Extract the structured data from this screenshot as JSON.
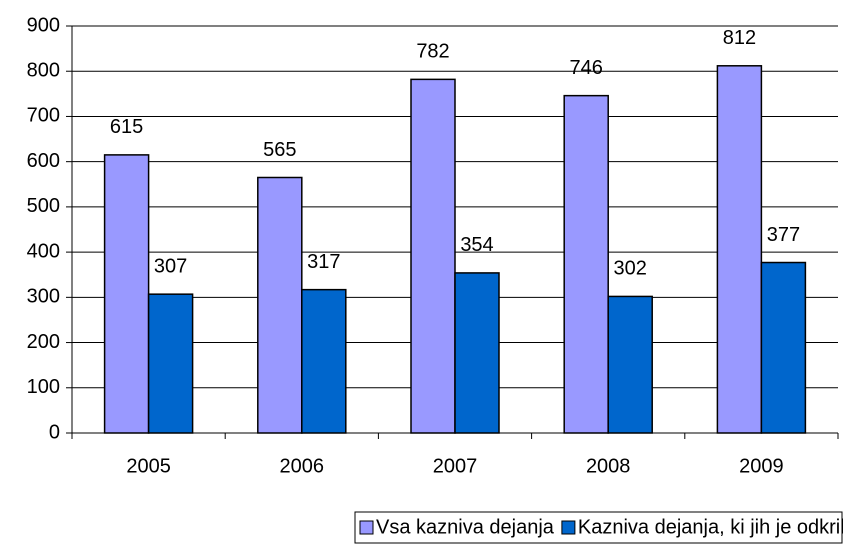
{
  "chart_data": {
    "type": "bar",
    "categories": [
      "2005",
      "2006",
      "2007",
      "2008",
      "2009"
    ],
    "series": [
      {
        "name": "Vsa kazniva dejanja",
        "color": "#9999ff",
        "values": [
          615,
          565,
          782,
          746,
          812
        ]
      },
      {
        "name": "Kazniva dejanja, ki jih je odkrila policija",
        "color": "#0066cc",
        "values": [
          307,
          317,
          354,
          302,
          377
        ]
      }
    ],
    "ylim": [
      0,
      900
    ],
    "yticks": [
      0,
      100,
      200,
      300,
      400,
      500,
      600,
      700,
      800,
      900
    ],
    "grid": true,
    "legend": "bottom"
  }
}
